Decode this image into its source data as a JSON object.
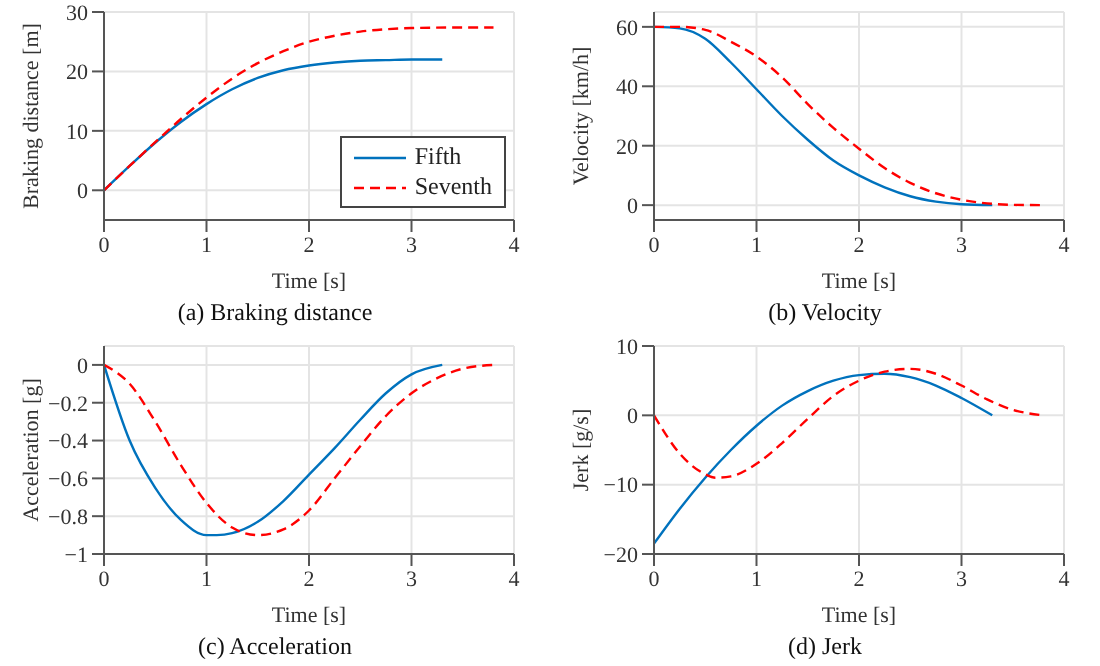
{
  "chart_data": [
    {
      "type": "line",
      "title": "(a) Braking distance",
      "xlabel": "Time [s]",
      "ylabel": "Braking distance [m]",
      "xlim": [
        0,
        4
      ],
      "xticks": [
        0,
        1,
        2,
        3,
        4
      ],
      "ylim": [
        -5,
        30
      ],
      "yticks": [
        0,
        10,
        20,
        30
      ],
      "grid": true,
      "legend": "bottom right",
      "marker": "none",
      "series": [
        {
          "name": "Fifth",
          "color": "#0072bd",
          "line_style": "solid",
          "x": [
            0,
            0.25,
            0.5,
            0.75,
            1,
            1.25,
            1.5,
            1.75,
            2,
            2.25,
            2.5,
            2.75,
            3,
            3.3
          ],
          "values": [
            0,
            4.1,
            8,
            11.5,
            14.5,
            17,
            18.9,
            20.2,
            21,
            21.5,
            21.8,
            21.9,
            22,
            22
          ]
        },
        {
          "name": "Seventh",
          "color": "#ff0000",
          "line_style": "dashed",
          "x": [
            0,
            0.25,
            0.5,
            0.75,
            1,
            1.25,
            1.5,
            1.75,
            2,
            2.25,
            2.5,
            2.75,
            3,
            3.5,
            3.8
          ],
          "values": [
            0,
            4.1,
            8.1,
            12,
            15.6,
            18.8,
            21.4,
            23.4,
            25,
            26,
            26.7,
            27.1,
            27.3,
            27.4,
            27.4
          ]
        }
      ]
    },
    {
      "type": "line",
      "title": "(b) Velocity",
      "xlabel": "Time [s]",
      "ylabel": "Velocity [km/h]",
      "xlim": [
        0,
        4
      ],
      "xticks": [
        0,
        1,
        2,
        3,
        4
      ],
      "ylim": [
        -5,
        65
      ],
      "yticks": [
        0,
        20,
        40,
        60
      ],
      "grid": true,
      "marker": "none",
      "series": [
        {
          "color": "#0072bd",
          "line_style": "solid",
          "x": [
            0,
            0.25,
            0.5,
            0.75,
            1,
            1.25,
            1.5,
            1.75,
            2,
            2.25,
            2.5,
            2.75,
            3,
            3.3
          ],
          "values": [
            60,
            59.5,
            56,
            48,
            39,
            30,
            22,
            15,
            10,
            6,
            3,
            1.2,
            0.3,
            0
          ]
        },
        {
          "color": "#ff0000",
          "line_style": "dashed",
          "x": [
            0,
            0.25,
            0.5,
            0.75,
            1,
            1.25,
            1.5,
            1.75,
            2,
            2.25,
            2.5,
            2.75,
            3,
            3.25,
            3.5,
            3.8
          ],
          "values": [
            60,
            60,
            59,
            55,
            50,
            43,
            34,
            26,
            19,
            12.5,
            7.5,
            4,
            1.8,
            0.6,
            0.1,
            0
          ]
        }
      ]
    },
    {
      "type": "line",
      "title": "(c) Acceleration",
      "xlabel": "Time [s]",
      "ylabel": "Acceleration [g]",
      "xlim": [
        0,
        4
      ],
      "xticks": [
        0,
        1,
        2,
        3,
        4
      ],
      "ylim": [
        -1,
        0.1
      ],
      "yticks": [
        -1,
        -0.8,
        -0.6,
        -0.4,
        -0.2,
        0
      ],
      "grid": true,
      "marker": "none",
      "series": [
        {
          "color": "#0072bd",
          "line_style": "solid",
          "x": [
            0,
            0.25,
            0.5,
            0.75,
            1,
            1.1,
            1.25,
            1.5,
            1.75,
            2,
            2.25,
            2.5,
            2.75,
            3,
            3.3
          ],
          "values": [
            0,
            -0.4,
            -0.65,
            -0.82,
            -0.9,
            -0.9,
            -0.89,
            -0.83,
            -0.72,
            -0.58,
            -0.44,
            -0.29,
            -0.15,
            -0.05,
            0
          ]
        },
        {
          "color": "#ff0000",
          "line_style": "dashed",
          "x": [
            0,
            0.25,
            0.5,
            0.75,
            1,
            1.25,
            1.5,
            1.75,
            2,
            2.25,
            2.5,
            2.75,
            3,
            3.25,
            3.5,
            3.8
          ],
          "values": [
            0,
            -0.1,
            -0.3,
            -0.53,
            -0.73,
            -0.86,
            -0.9,
            -0.87,
            -0.77,
            -0.6,
            -0.43,
            -0.27,
            -0.15,
            -0.07,
            -0.02,
            0
          ]
        }
      ]
    },
    {
      "type": "line",
      "title": "(d) Jerk",
      "xlabel": "Time [s]",
      "ylabel": "Jerk [g/s]",
      "xlim": [
        0,
        4
      ],
      "xticks": [
        0,
        1,
        2,
        3,
        4
      ],
      "ylim": [
        -20,
        10
      ],
      "yticks": [
        -20,
        -10,
        0,
        10
      ],
      "grid": true,
      "marker": "none",
      "series": [
        {
          "color": "#0072bd",
          "line_style": "solid",
          "x": [
            0,
            0.25,
            0.5,
            0.75,
            1,
            1.25,
            1.5,
            1.75,
            2,
            2.25,
            2.5,
            2.75,
            3,
            3.3
          ],
          "values": [
            -18.5,
            -13.5,
            -9,
            -5,
            -1.5,
            1.4,
            3.5,
            5,
            5.8,
            6,
            5.5,
            4.3,
            2.5,
            0
          ]
        },
        {
          "color": "#ff0000",
          "line_style": "dashed",
          "x": [
            0,
            0.25,
            0.5,
            0.6,
            0.75,
            1,
            1.25,
            1.5,
            1.75,
            2,
            2.25,
            2.5,
            2.75,
            3,
            3.25,
            3.5,
            3.8
          ],
          "values": [
            0,
            -5.5,
            -8.5,
            -9,
            -8.8,
            -7,
            -4,
            -0.5,
            2.8,
            5,
            6.3,
            6.7,
            6,
            4.3,
            2.3,
            0.8,
            0
          ]
        }
      ]
    }
  ]
}
